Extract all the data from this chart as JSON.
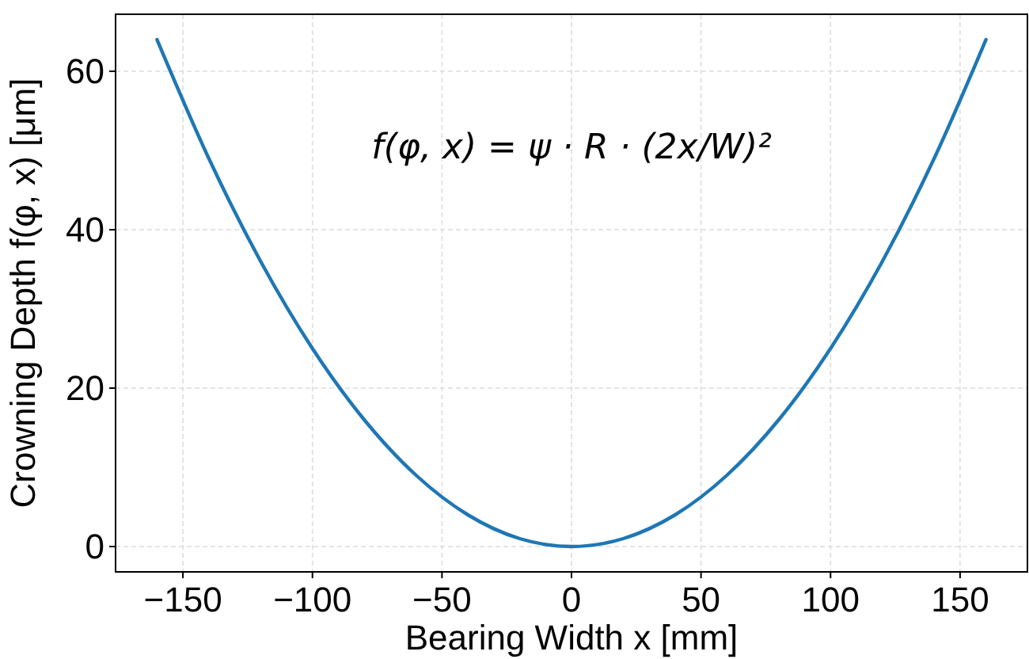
{
  "chart_data": {
    "type": "line",
    "xlabel": "Bearing Width x [mm]",
    "ylabel": "Crowning Depth f(φ, x) [μm]",
    "annotations": [
      "f(φ, x) = ψ · R · (2x/W)²"
    ],
    "x": [
      -160,
      -140,
      -120,
      -100,
      -80,
      -60,
      -40,
      -20,
      0,
      20,
      40,
      60,
      80,
      100,
      120,
      140,
      160
    ],
    "series": [
      {
        "color": "#1f77b4",
        "values": [
          64,
          49,
          36,
          25,
          16,
          9,
          4,
          1,
          0,
          1,
          4,
          9,
          16,
          25,
          36,
          49,
          64
        ]
      }
    ],
    "xlim": [
      -176,
      176
    ],
    "xticks": [
      {
        "value": -150,
        "label": "−150"
      },
      {
        "value": -100,
        "label": "−100"
      },
      {
        "value": -50,
        "label": "−50"
      },
      0,
      50,
      100,
      150
    ],
    "ylim": [
      -3.2,
      67.2
    ],
    "yticks": [
      0,
      20,
      40,
      60
    ],
    "grid": true,
    "marker": "none",
    "line_style": "solid"
  }
}
